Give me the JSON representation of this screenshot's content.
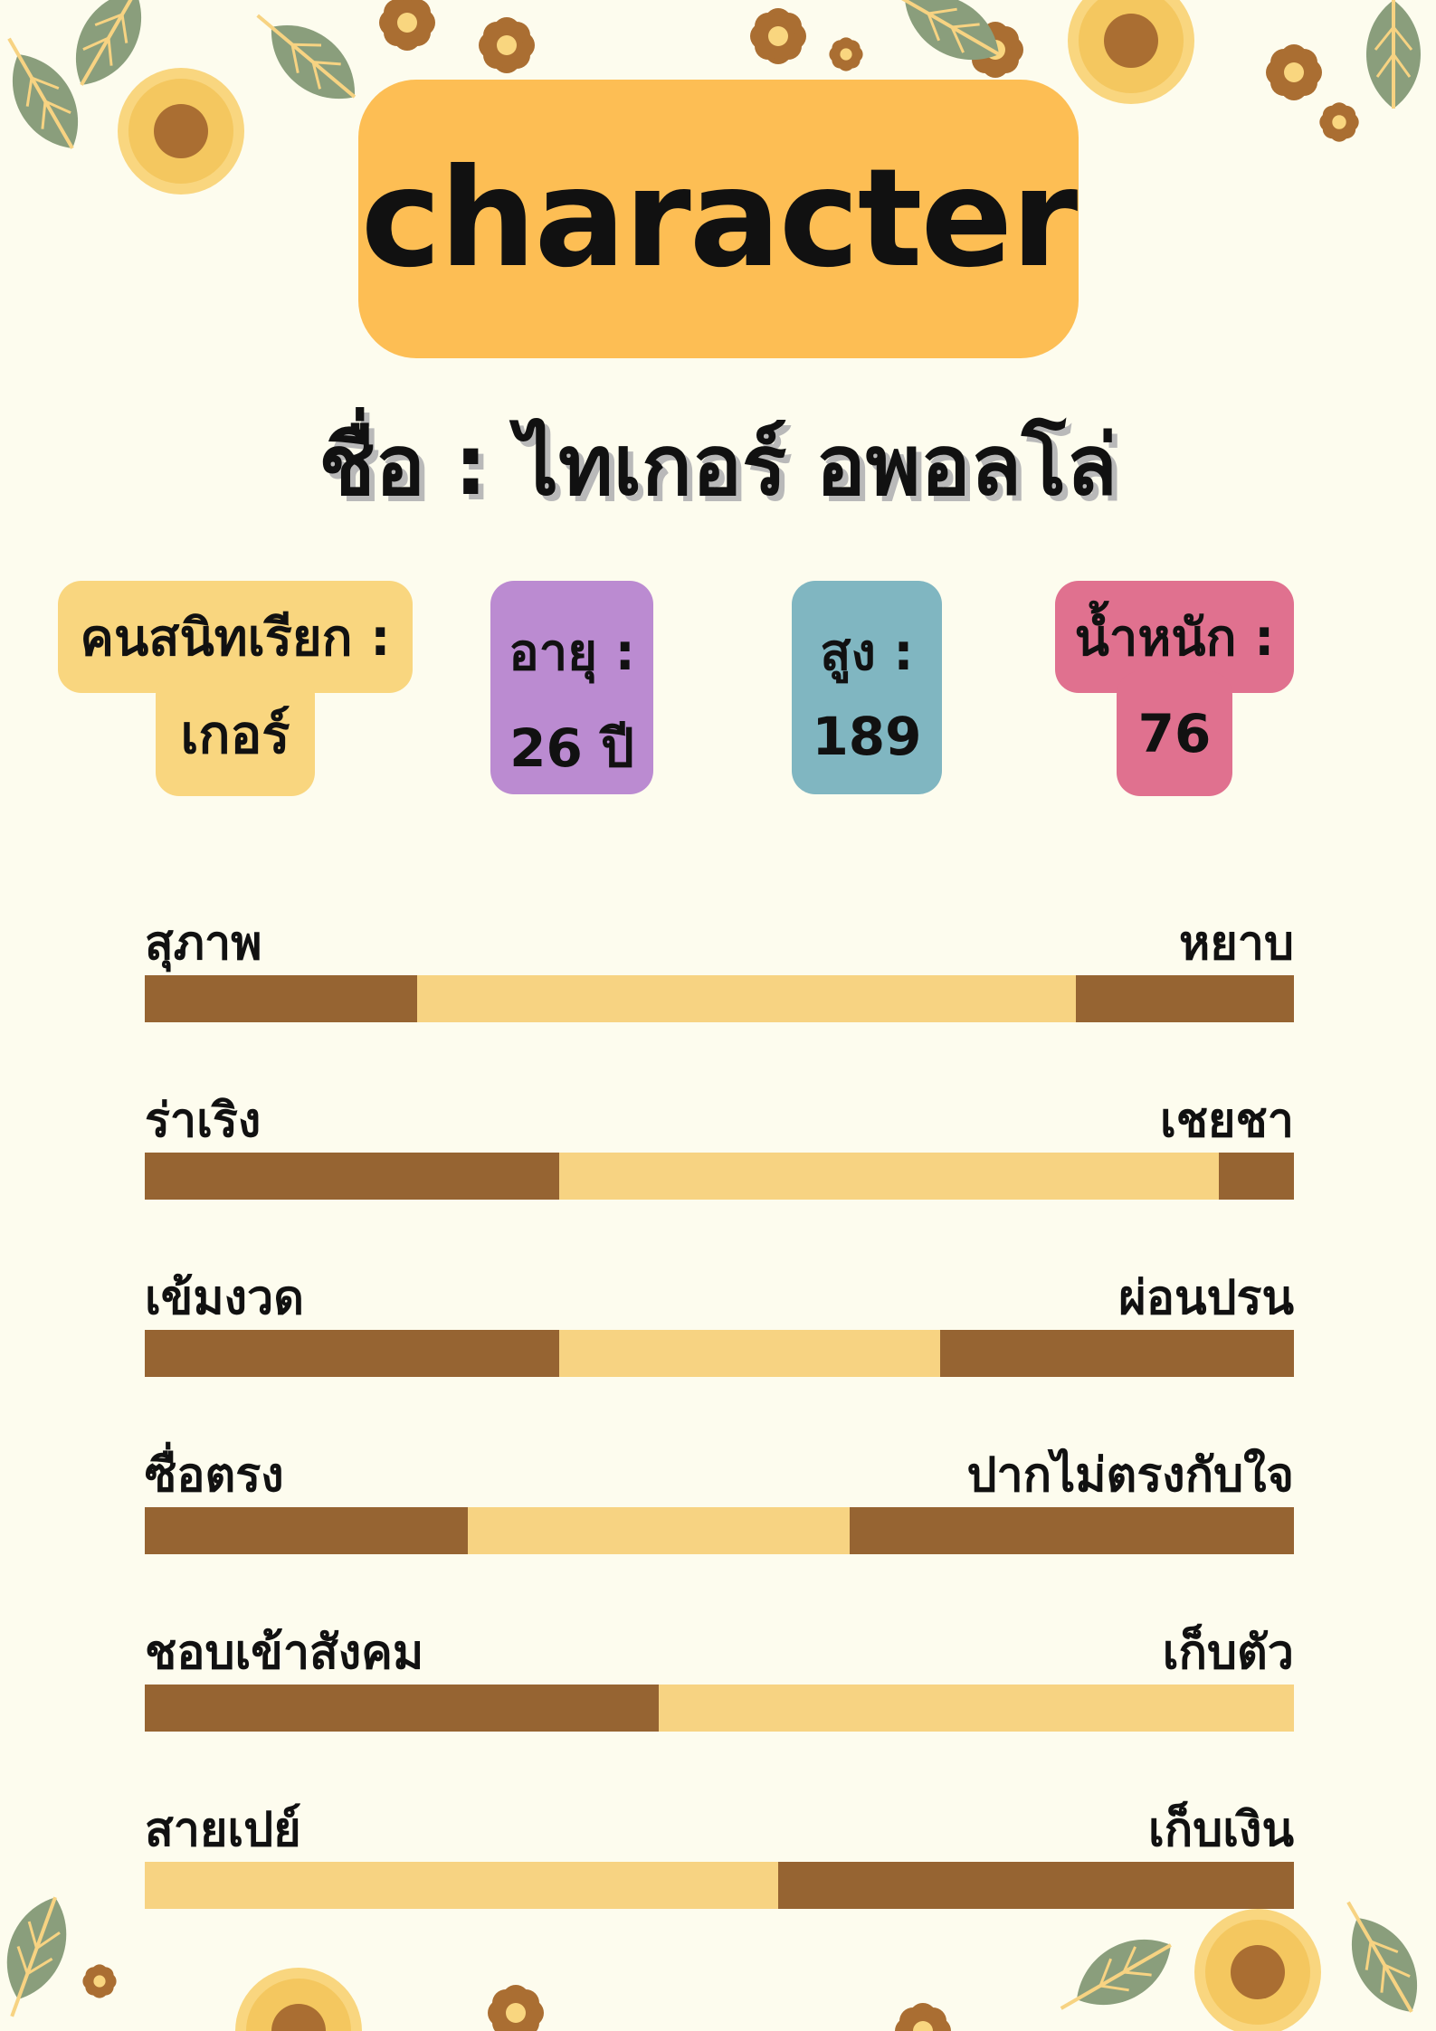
{
  "title": "character",
  "name_line": "ชื่อ : ไทเกอร์  อพอลโล่",
  "colors": {
    "background": "#FDFCEE",
    "title_box": "#FDBE54",
    "bar_dark": "#966432",
    "bar_light": "#F7D382",
    "leaf": "#8A9E7C",
    "flower_yellow": "#F9D67F",
    "flower_brown": "#AA6E32"
  },
  "info": [
    {
      "label": "คนสนิทเรียก :",
      "value": "เกอร์",
      "color": "#F9D67F"
    },
    {
      "label": "อายุ :",
      "value": "26 ปี",
      "color": "#BB8BD1"
    },
    {
      "label": "สูง :",
      "value": "189",
      "color": "#80B6C1"
    },
    {
      "label": "น้ำหนัก :",
      "value": "76",
      "color": "#E0718F"
    }
  ],
  "traits": [
    {
      "left": "สุภาพ",
      "right": "หยาบ",
      "light_start": 0.237,
      "light_end": 0.81
    },
    {
      "left": "ร่าเริง",
      "right": "เชยชา",
      "light_start": 0.361,
      "light_end": 0.935
    },
    {
      "left": "เข้มงวด",
      "right": "ผ่อนปรน",
      "light_start": 0.361,
      "light_end": 0.692
    },
    {
      "left": "ซื่อตรง",
      "right": "ปากไม่ตรงกับใจ",
      "light_start": 0.281,
      "light_end": 0.613
    },
    {
      "left": "ชอบเข้าสังคม",
      "right": "เก็บตัว",
      "light_start": 0.447,
      "light_end": 1.0
    },
    {
      "left": "สายเปย์",
      "right": "เก็บเงิน",
      "light_start": 0.0,
      "light_end": 0.551
    }
  ]
}
